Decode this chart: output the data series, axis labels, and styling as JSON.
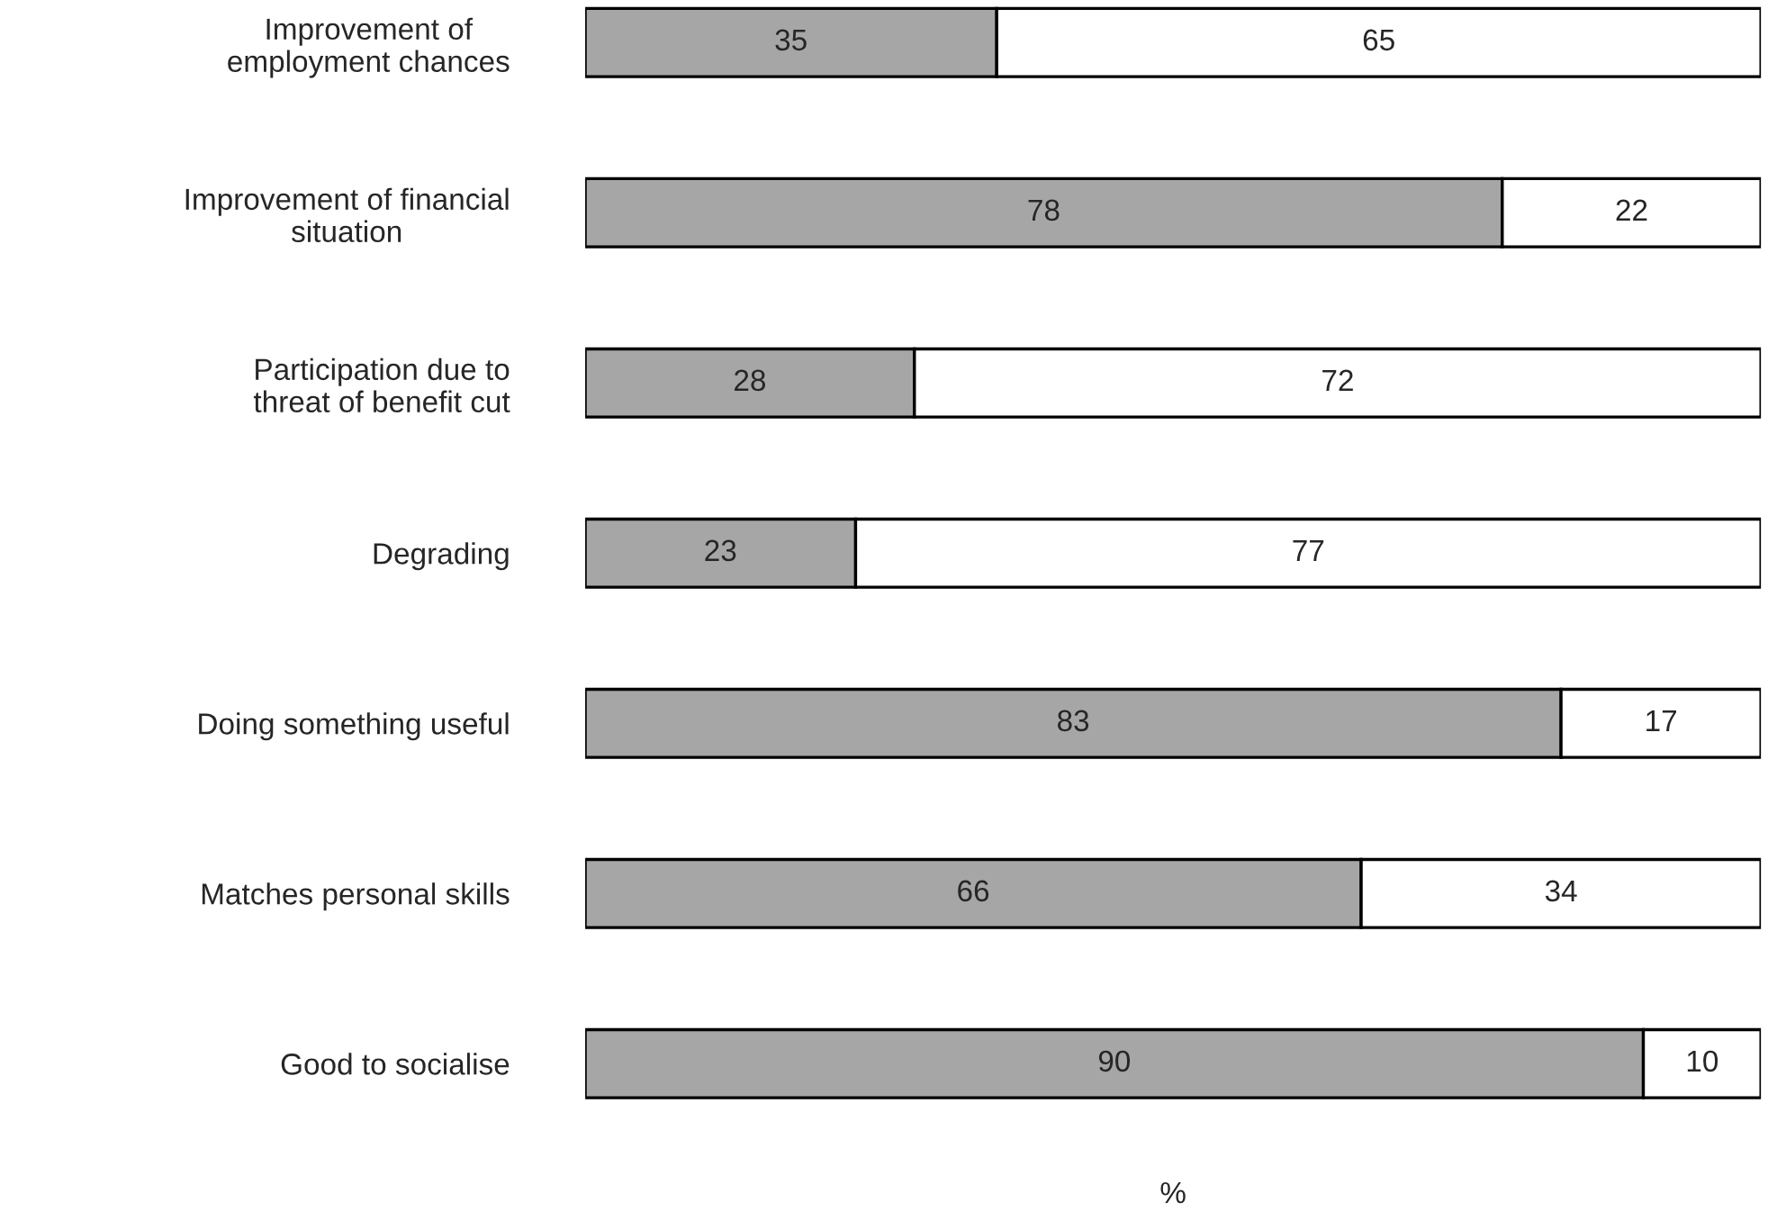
{
  "chart_data": {
    "type": "bar",
    "orientation": "horizontal",
    "stacked": true,
    "xlabel": "%",
    "categories": [
      "Improvement of\nemployment chances",
      "Improvement of financial\nsituation",
      "Participation due to\nthreat of benefit cut",
      "Degrading",
      "Doing something useful",
      "Matches personal skills",
      "Good to socialise"
    ],
    "series": [
      {
        "color": "#a6a6a6",
        "values": [
          35,
          78,
          28,
          23,
          83,
          66,
          90
        ]
      },
      {
        "color": "#ffffff",
        "values": [
          65,
          22,
          72,
          77,
          17,
          34,
          10
        ]
      }
    ],
    "xlim": [
      0,
      100
    ],
    "data_labels": true,
    "tick_labels": "y",
    "grid": false,
    "legend": false
  }
}
